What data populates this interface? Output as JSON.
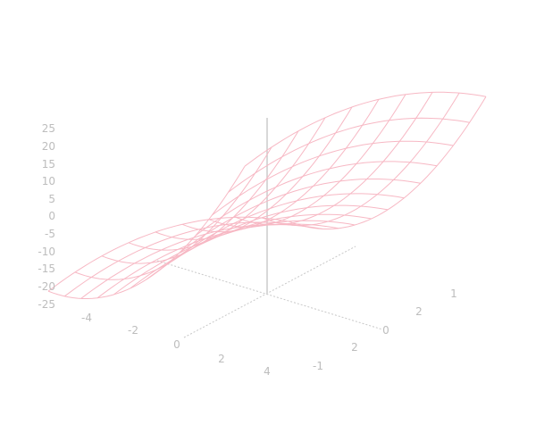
{
  "chart_data": {
    "type": "surface",
    "title": "",
    "function": "z = x^2 - y^2",
    "x_range": [
      -4,
      4
    ],
    "y_range": [
      -3,
      3
    ],
    "grid_step": 0.6667,
    "z_ticks": [
      "25",
      "20",
      "15",
      "10",
      "5",
      "0",
      "-5",
      "-10",
      "-15",
      "-20",
      "-25"
    ],
    "x_tick_labels": [
      "-4",
      "-2",
      "0",
      "2",
      "4"
    ],
    "y_tick_labels": [
      "-1",
      "2",
      "0",
      "2",
      "1"
    ],
    "grid": false,
    "legend": "none",
    "colors": {
      "surface": "#f7b8c4",
      "axis": "#c8c8c8",
      "text": "#bdbdbd"
    }
  }
}
